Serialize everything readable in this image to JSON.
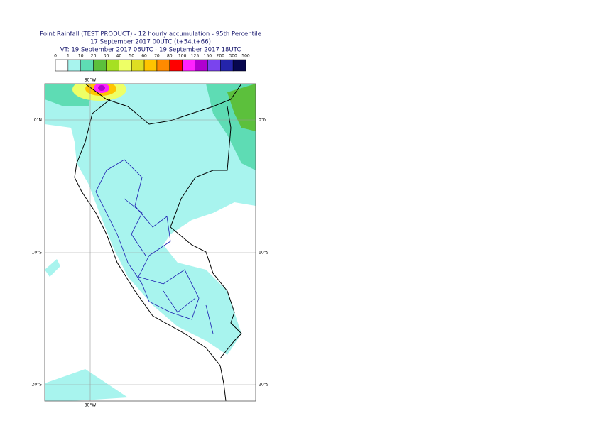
{
  "map": {
    "title": [
      "Point Rainfall (TEST PRODUCT) - 12 hourly accumulation - 95th Percentile",
      "17 September 2017 00UTC (t+54,t+66)",
      "VT: 19 September 2017 06UTC - 19 September 2017 18UTC"
    ],
    "colorbar": {
      "labels": [
        0,
        1,
        10,
        20,
        30,
        40,
        50,
        60,
        70,
        80,
        100,
        125,
        150,
        200,
        300,
        500
      ],
      "colors": [
        "#ffffff",
        "#a8f4ee",
        "#5edcb4",
        "#5cc03c",
        "#a6e022",
        "#eeff66",
        "#dede22",
        "#ffc400",
        "#ff8a00",
        "#ff0000",
        "#ff22ff",
        "#b000d0",
        "#7a44ee",
        "#2424aa",
        "#06064e"
      ]
    },
    "latitude_labels": [
      "0°N",
      "10°S",
      "20°S"
    ],
    "longitude_labels": [
      "80°W"
    ]
  }
}
